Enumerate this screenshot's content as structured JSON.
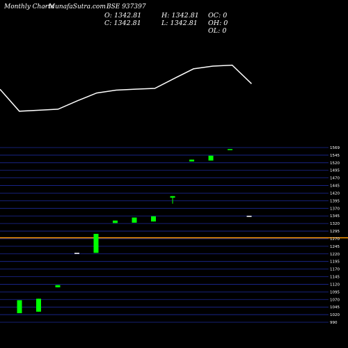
{
  "header": {
    "period_label": "Monthly Charts",
    "site_label": "- MunafaSutra.com",
    "symbol_label": "BSE 937397"
  },
  "ohlc": {
    "o": "O: 1342.81",
    "h": "H: 1342.81",
    "oc": "OC: 0",
    "c": "C: 1342.81",
    "l": "L: 1342.81",
    "oh": "OH: 0",
    "ol": "OL: 0"
  },
  "colors": {
    "background": "#000000",
    "up_candle": "#00ff00",
    "flat_candle": "#ffffff",
    "grid": "#1c2a9a",
    "reference_line": "#ff9900",
    "line": "#ffffff"
  },
  "chart_data": [
    {
      "type": "line",
      "title": "",
      "x": [
        1,
        2,
        3,
        4,
        5,
        6,
        7,
        8,
        9,
        10,
        11,
        12,
        13,
        14
      ],
      "series": [
        {
          "values": [
            1185,
            1008,
            1016,
            1024,
            1092,
            1155,
            1178,
            1186,
            1192,
            1272,
            1350,
            1372,
            1380,
            1230
          ]
        }
      ],
      "grid": false
    },
    {
      "type": "candlestick",
      "title": "",
      "ylim": [
        990,
        1569
      ],
      "yticks": [
        1569,
        1545,
        1520,
        1495,
        1470,
        1445,
        1420,
        1395,
        1370,
        1345,
        1320,
        1295,
        1270,
        1245,
        1220,
        1195,
        1170,
        1145,
        1120,
        1095,
        1070,
        1045,
        1020,
        990
      ],
      "reference_value": 1270,
      "grid": true,
      "candles": [
        {
          "x": 1,
          "open": 1020,
          "high": 1063,
          "low": 1020,
          "close": 1063
        },
        {
          "x": 2,
          "open": 1025,
          "high": 1068,
          "low": 1025,
          "close": 1068
        },
        {
          "x": 3,
          "open": 1106,
          "high": 1113,
          "low": 1106,
          "close": 1113
        },
        {
          "x": 4,
          "open": 1220,
          "high": 1220,
          "low": 1220,
          "close": 1220
        },
        {
          "x": 5,
          "open": 1220,
          "high": 1283,
          "low": 1220,
          "close": 1283
        },
        {
          "x": 6,
          "open": 1319,
          "high": 1327,
          "low": 1319,
          "close": 1327
        },
        {
          "x": 7,
          "open": 1320,
          "high": 1337,
          "low": 1320,
          "close": 1337
        },
        {
          "x": 8,
          "open": 1324,
          "high": 1341,
          "low": 1324,
          "close": 1341
        },
        {
          "x": 9,
          "open": 1403,
          "high": 1408,
          "low": 1383,
          "close": 1408
        },
        {
          "x": 10,
          "open": 1523,
          "high": 1529,
          "low": 1523,
          "close": 1529
        },
        {
          "x": 11,
          "open": 1526,
          "high": 1542,
          "low": 1526,
          "close": 1542
        },
        {
          "x": 12,
          "open": 1561,
          "high": 1564,
          "low": 1561,
          "close": 1564
        },
        {
          "x": 13,
          "open": 1342.81,
          "high": 1342.81,
          "low": 1342.81,
          "close": 1342.81
        }
      ]
    }
  ]
}
